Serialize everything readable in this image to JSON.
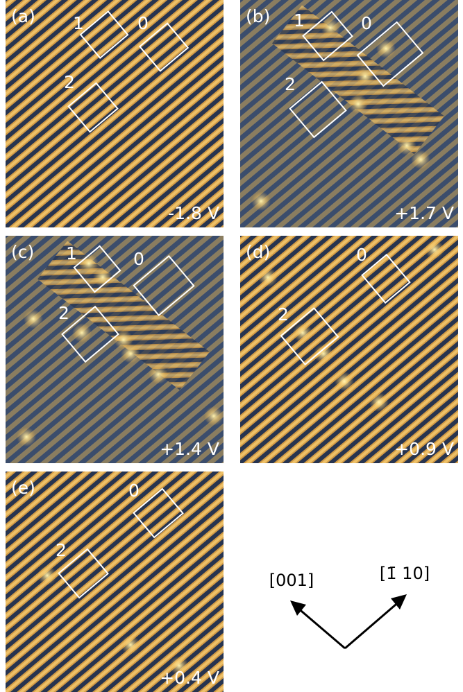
{
  "panels": [
    {
      "label": "(a)",
      "voltage": "-1.8 V",
      "boxes": [
        {
          "label": "1"
        },
        {
          "label": "0"
        },
        {
          "label": "2"
        }
      ]
    },
    {
      "label": "(b)",
      "voltage": "+1.7 V",
      "boxes": [
        {
          "label": "1"
        },
        {
          "label": "0"
        },
        {
          "label": "2"
        }
      ]
    },
    {
      "label": "(c)",
      "voltage": "+1.4 V",
      "boxes": [
        {
          "label": "1"
        },
        {
          "label": "0"
        },
        {
          "label": "2"
        }
      ]
    },
    {
      "label": "(d)",
      "voltage": "+0.9 V",
      "boxes": [
        {
          "label": "0"
        },
        {
          "label": "2"
        }
      ]
    },
    {
      "label": "(e)",
      "voltage": "+0.4 V",
      "boxes": [
        {
          "label": "0"
        },
        {
          "label": "2"
        }
      ]
    }
  ],
  "directions": {
    "left": "[001]",
    "right": "[1̄ 10]"
  }
}
